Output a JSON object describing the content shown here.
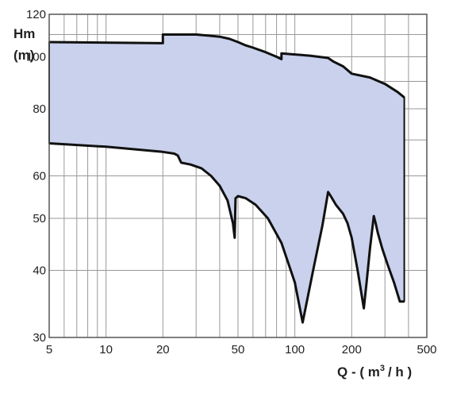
{
  "chart_data": {
    "type": "area",
    "title": "",
    "ylabel_line1": "Hm",
    "ylabel_line2": "(m)",
    "xlabel_prefix": "Q - ( m",
    "xlabel_sup": "3",
    "xlabel_suffix": "/ h )",
    "xscale": "log",
    "yscale": "log",
    "xlim": [
      5,
      500
    ],
    "ylim": [
      30,
      120
    ],
    "xticks": [
      5,
      10,
      20,
      50,
      100,
      200,
      500
    ],
    "yticks": [
      30,
      40,
      50,
      60,
      80,
      100,
      120
    ],
    "x_gridlines": [
      5,
      6,
      7,
      8,
      9,
      10,
      20,
      30,
      40,
      50,
      60,
      70,
      80,
      90,
      100,
      200,
      300,
      400,
      500
    ],
    "y_gridlines": [
      30,
      40,
      50,
      60,
      70,
      80,
      90,
      100,
      110,
      120
    ],
    "grid": true,
    "fill_color": "#c9d1ec",
    "line_color": "#111111",
    "grid_color": "#999999",
    "upper_curve": {
      "x": [
        5,
        20,
        20,
        30,
        35,
        40,
        45,
        50,
        55,
        60,
        70,
        80,
        85,
        85,
        100,
        120,
        150,
        160,
        180,
        200,
        250,
        300,
        350,
        380
      ],
      "y": [
        106.5,
        106,
        110,
        110,
        109.5,
        109,
        108,
        106.5,
        105,
        104,
        102,
        100,
        99,
        101.5,
        101,
        100.5,
        99.5,
        98,
        96,
        93,
        91.5,
        89,
        86,
        84
      ]
    },
    "lower_curve": {
      "x": [
        5,
        10,
        20,
        23,
        24,
        25,
        28,
        32,
        36,
        40,
        44,
        47,
        48,
        48.5,
        50,
        55,
        62,
        72,
        85,
        100,
        110,
        125,
        140,
        150,
        155,
        165,
        180,
        190,
        200,
        215,
        232,
        240,
        250,
        262,
        268,
        275,
        290,
        310,
        335,
        360,
        380
      ],
      "y": [
        69,
        68,
        66.5,
        66,
        65.5,
        63.5,
        63,
        62,
        60,
        57.5,
        54,
        49,
        46,
        54.5,
        55,
        54.5,
        53,
        50,
        45,
        38,
        32,
        40,
        48.5,
        56,
        55,
        53,
        51,
        49,
        46,
        40,
        34,
        38,
        44,
        50.5,
        49,
        47,
        44,
        41,
        38,
        35,
        35
      ]
    }
  }
}
